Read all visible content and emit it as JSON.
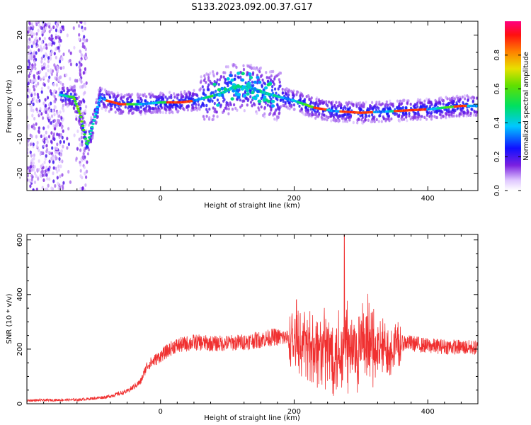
{
  "title": "S133.2023.092.00.37.G17",
  "chart_data": [
    {
      "type": "heatmap",
      "xlabel": "Height of straight line (km)",
      "ylabel": "Frequency (Hz)",
      "xlim": [
        -200,
        475
      ],
      "ylim": [
        -25,
        24
      ],
      "xticks": [
        0,
        200,
        400
      ],
      "yticks": [
        -20,
        -10,
        0,
        10,
        20
      ],
      "colorbar": {
        "label": "Normalized spectral amplitude",
        "range": [
          0,
          1
        ],
        "ticks": [
          "0.0",
          "0.2",
          "0.4",
          "0.6",
          "0.8"
        ]
      },
      "ridge": {
        "x": [
          -200,
          -160,
          -130,
          -120,
          -110,
          -100,
          -90,
          -80,
          -60,
          -30,
          0,
          30,
          50,
          70,
          90,
          110,
          130,
          160,
          180,
          200,
          230,
          260,
          300,
          350,
          400,
          450,
          475
        ],
        "y": [
          2,
          3,
          2,
          -3,
          -12,
          -5,
          2,
          1,
          0,
          0,
          0.5,
          0.5,
          1,
          2,
          3,
          5,
          5,
          3,
          2,
          1,
          -1,
          -2,
          -2.5,
          -2,
          -1.5,
          -0.5,
          -0.5
        ]
      },
      "noise_region_x": [
        -200,
        -110
      ],
      "grid": false
    },
    {
      "type": "line",
      "xlabel": "Height of straight line (km)",
      "ylabel": "SNR (10 * v/v)",
      "xlim": [
        -200,
        475
      ],
      "ylim": [
        0,
        620
      ],
      "xticks": [
        0,
        200,
        400
      ],
      "yticks": [
        0,
        200,
        400,
        600
      ],
      "series_color": "#f03030",
      "envelope": {
        "x": [
          -200,
          -120,
          -80,
          -50,
          -30,
          -20,
          0,
          20,
          50,
          80,
          120,
          150,
          170,
          190,
          210,
          240,
          270,
          300,
          330,
          355,
          365,
          400,
          440,
          475
        ],
        "y": [
          12,
          15,
          25,
          45,
          80,
          140,
          175,
          210,
          225,
          220,
          225,
          235,
          245,
          240,
          220,
          200,
          190,
          190,
          200,
          210,
          225,
          212,
          208,
          205
        ]
      },
      "burst_region_x": [
        190,
        360
      ],
      "peak": {
        "x": 275,
        "y": 620
      },
      "grid": false
    }
  ]
}
